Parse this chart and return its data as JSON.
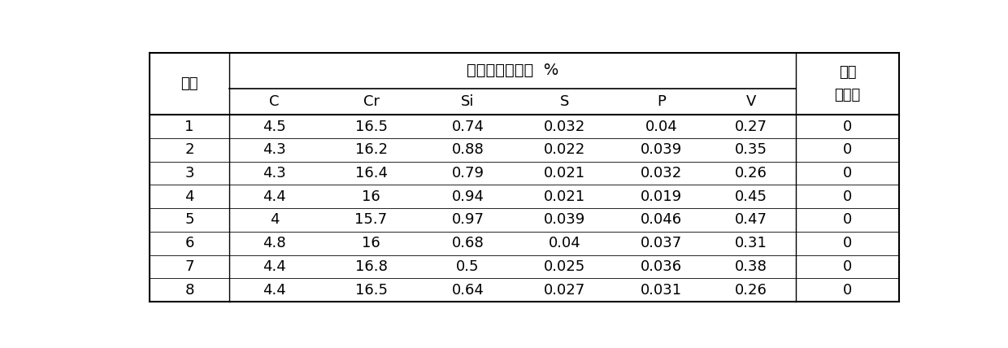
{
  "title_main": "铬基合金鉢成分  %",
  "header_left": "炉号",
  "header_right_top": "渣中",
  "header_right_bottom": "六价铬",
  "col_headers": [
    "C",
    "Cr",
    "Si",
    "S",
    "P",
    "V"
  ],
  "rows": [
    [
      "1",
      "4.5",
      "16.5",
      "0.74",
      "0.032",
      "0.04",
      "0.27",
      "0"
    ],
    [
      "2",
      "4.3",
      "16.2",
      "0.88",
      "0.022",
      "0.039",
      "0.35",
      "0"
    ],
    [
      "3",
      "4.3",
      "16.4",
      "0.79",
      "0.021",
      "0.032",
      "0.26",
      "0"
    ],
    [
      "4",
      "4.4",
      "16",
      "0.94",
      "0.021",
      "0.019",
      "0.45",
      "0"
    ],
    [
      "5",
      "4",
      "15.7",
      "0.97",
      "0.039",
      "0.046",
      "0.47",
      "0"
    ],
    [
      "6",
      "4.8",
      "16",
      "0.68",
      "0.04",
      "0.037",
      "0.31",
      "0"
    ],
    [
      "7",
      "4.4",
      "16.8",
      "0.5",
      "0.025",
      "0.036",
      "0.38",
      "0"
    ],
    [
      "8",
      "4.4",
      "16.5",
      "0.64",
      "0.027",
      "0.031",
      "0.26",
      "0"
    ]
  ],
  "background_color": "#ffffff",
  "text_color": "#000000",
  "line_color": "#000000",
  "font_size": 13.0,
  "header_font_size": 13.0,
  "title_font_size": 14.0,
  "fig_width": 12.4,
  "fig_height": 4.28,
  "dpi": 100
}
